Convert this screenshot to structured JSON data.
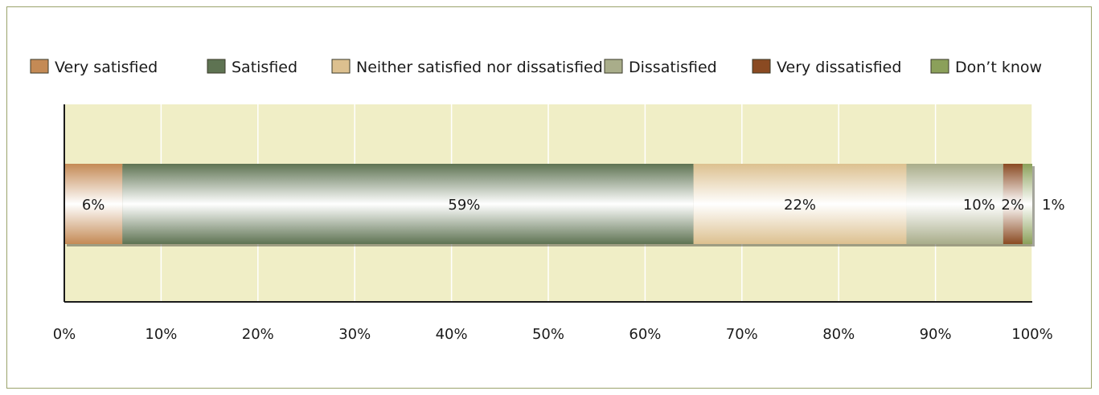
{
  "chart_data": {
    "type": "bar",
    "orientation": "horizontal",
    "stacked": true,
    "categories": [
      ""
    ],
    "series": [
      {
        "name": "Very satisfied",
        "values": [
          6
        ],
        "label": "6%",
        "color": "#c48a55"
      },
      {
        "name": "Satisfied",
        "values": [
          59
        ],
        "label": "59%",
        "color": "#5e7352"
      },
      {
        "name": "Neither satisfied nor dissatisfied",
        "values": [
          22
        ],
        "label": "22%",
        "color": "#dcc08f"
      },
      {
        "name": "Dissatisfied",
        "values": [
          10
        ],
        "label": "10%",
        "color": "#a9ad8a"
      },
      {
        "name": "Very dissatisfied",
        "values": [
          2
        ],
        "label": "2%",
        "color": "#8a4a22"
      },
      {
        "name": "Don’t know",
        "values": [
          1
        ],
        "label": "1%",
        "color": "#8ba05a"
      }
    ],
    "xlim": [
      0,
      100
    ],
    "xticks": [
      "0%",
      "10%",
      "20%",
      "30%",
      "40%",
      "50%",
      "60%",
      "70%",
      "80%",
      "90%",
      "100%"
    ],
    "grid": true,
    "legend_position": "top",
    "plot_background": "#f0eec6",
    "gridline_color": "#ffffff",
    "frame_color": "#9aa36b"
  }
}
